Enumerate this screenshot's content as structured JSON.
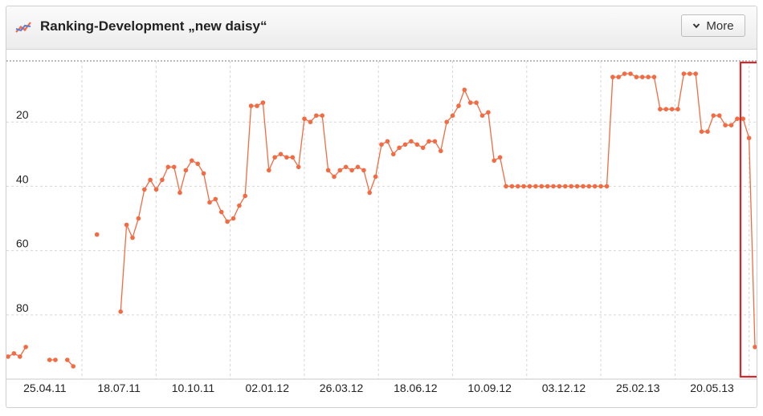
{
  "widget": {
    "title": "Ranking-Development „new daisy“",
    "more_label": "More",
    "more_icon": "chevron-down-icon",
    "title_icon": "line-chart-icon"
  },
  "chart_data": {
    "type": "line",
    "title": "Ranking-Development „new daisy“",
    "y_inverted": true,
    "ylim": [
      1,
      98
    ],
    "yticks": [
      20,
      40,
      60,
      80
    ],
    "xtick_labels": [
      "25.04.11",
      "18.07.11",
      "10.10.11",
      "02.01.12",
      "26.03.12",
      "18.06.12",
      "10.09.12",
      "03.12.12",
      "25.02.13",
      "20.05.13"
    ],
    "grid": true,
    "line_color": "#f26b43",
    "highlight_color": "#d9262a",
    "series": [
      {
        "values": [
          93,
          92,
          93,
          90,
          null,
          null,
          null,
          94,
          94,
          null,
          94,
          96,
          null,
          null,
          null,
          55,
          null,
          null,
          null,
          79,
          52,
          56,
          50,
          41,
          38,
          41,
          38,
          34,
          34,
          42,
          35,
          32,
          33,
          36,
          45,
          44,
          48,
          51,
          50,
          46,
          43,
          15,
          15,
          14,
          35,
          31,
          30,
          31,
          31,
          34,
          19,
          20,
          18,
          18,
          35,
          37,
          35,
          34,
          35,
          34,
          35,
          42,
          37,
          27,
          26,
          30,
          28,
          27,
          26,
          27,
          28,
          26,
          26,
          29,
          20,
          18,
          15,
          10,
          14,
          14,
          18,
          17,
          32,
          31,
          40,
          40,
          40,
          40,
          40,
          40,
          40,
          40,
          40,
          40,
          40,
          40,
          40,
          40,
          40,
          40,
          40,
          40,
          6,
          6,
          5,
          5,
          6,
          6,
          6,
          6,
          16,
          16,
          16,
          16,
          5,
          5,
          5,
          23,
          23,
          18,
          18,
          21,
          21,
          19,
          19,
          25,
          90
        ]
      }
    ]
  }
}
